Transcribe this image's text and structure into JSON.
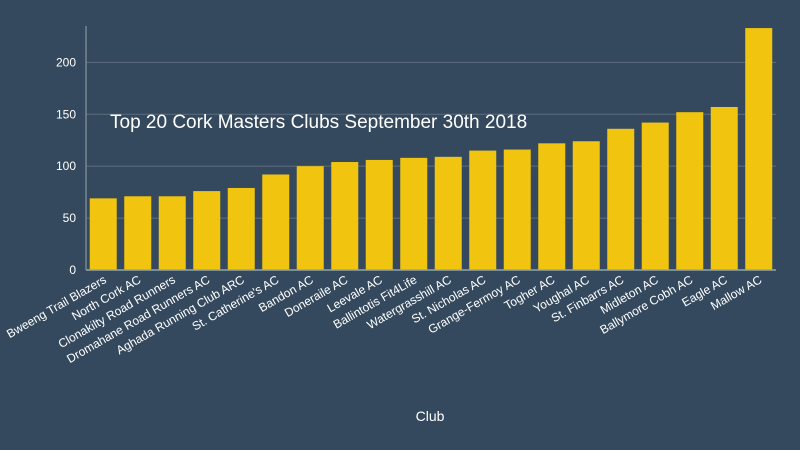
{
  "chart_data": {
    "type": "bar",
    "title": "Top 20 Cork Masters Clubs September 30th 2018",
    "xlabel": "Club",
    "ylabel": "",
    "ylim": [
      0,
      235
    ],
    "yticks": [
      0,
      50,
      100,
      150,
      200
    ],
    "grid": true,
    "colors": {
      "background": "#34495e",
      "bar": "#f1c40f",
      "grid": "#5d6d7e",
      "axis": "#95a5a6",
      "text": "#ffffff"
    },
    "categories": [
      "Bweeng Trail Blazers",
      "North Cork AC",
      "Clonakilty Road Runners",
      "Dromahane Road Runners AC",
      "Aghada Running Club ARC",
      "St. Catherine's AC",
      "Bandon AC",
      "Doneraile AC",
      "Leevale AC",
      "Ballintotis Fit4Life",
      "Watergrasshill AC",
      "St. Nicholas AC",
      "Grange-Fermoy AC",
      "Togher AC",
      "Youghal AC",
      "St. Finbarrs AC",
      "Midleton AC",
      "Ballymore Cobh AC",
      "Eagle AC",
      "Mallow AC"
    ],
    "values": [
      69,
      71,
      71,
      76,
      79,
      92,
      100,
      104,
      106,
      108,
      109,
      115,
      116,
      122,
      124,
      136,
      142,
      152,
      157,
      233
    ]
  }
}
